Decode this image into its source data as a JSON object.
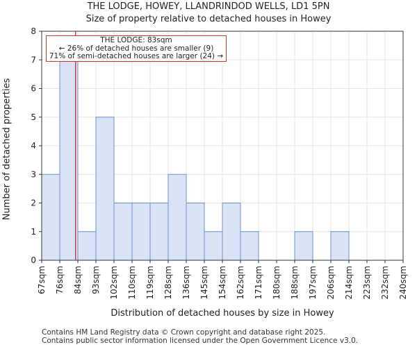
{
  "header": {
    "title": "THE LODGE, HOWEY, LLANDRINDOD WELLS, LD1 5PN",
    "subtitle": "Size of property relative to detached houses in Howey"
  },
  "annotation": {
    "line1": "THE LODGE: 83sqm",
    "line2": "← 26% of detached houses are smaller (9)",
    "line3": "71% of semi-detached houses are larger (24) →"
  },
  "footer": {
    "line1": "Contains HM Land Registry data © Crown copyright and database right 2025.",
    "line2": "Contains public sector information licensed under the Open Government Licence v3.0."
  },
  "colors": {
    "bar_fill": "#dae3f5",
    "bar_edge": "#6a8fd0",
    "marker": "#b22222",
    "axis": "#333333",
    "grid": "#e6e6e6"
  },
  "chart_data": {
    "type": "bar",
    "title": "THE LODGE, HOWEY, LLANDRINDOD WELLS, LD1 5PN",
    "subtitle": "Size of property relative to detached houses in Howey",
    "xlabel": "Distribution of detached houses by size in Howey",
    "ylabel": "Number of detached properties",
    "bin_edges": [
      67,
      76,
      84,
      93,
      102,
      110,
      119,
      128,
      136,
      145,
      154,
      162,
      171,
      180,
      188,
      197,
      206,
      214,
      223,
      232,
      240
    ],
    "tick_labels": [
      "67sqm",
      "76sqm",
      "84sqm",
      "93sqm",
      "102sqm",
      "110sqm",
      "119sqm",
      "128sqm",
      "136sqm",
      "145sqm",
      "154sqm",
      "162sqm",
      "171sqm",
      "180sqm",
      "188sqm",
      "197sqm",
      "206sqm",
      "214sqm",
      "223sqm",
      "232sqm",
      "240sqm"
    ],
    "values": [
      3,
      7,
      1,
      5,
      2,
      2,
      2,
      3,
      2,
      1,
      2,
      1,
      0,
      0,
      1,
      0,
      1,
      0,
      0,
      0
    ],
    "ylim": [
      0,
      8
    ],
    "yticks": [
      0,
      1,
      2,
      3,
      4,
      5,
      6,
      7,
      8
    ],
    "marker_value": 83,
    "grid": true
  }
}
